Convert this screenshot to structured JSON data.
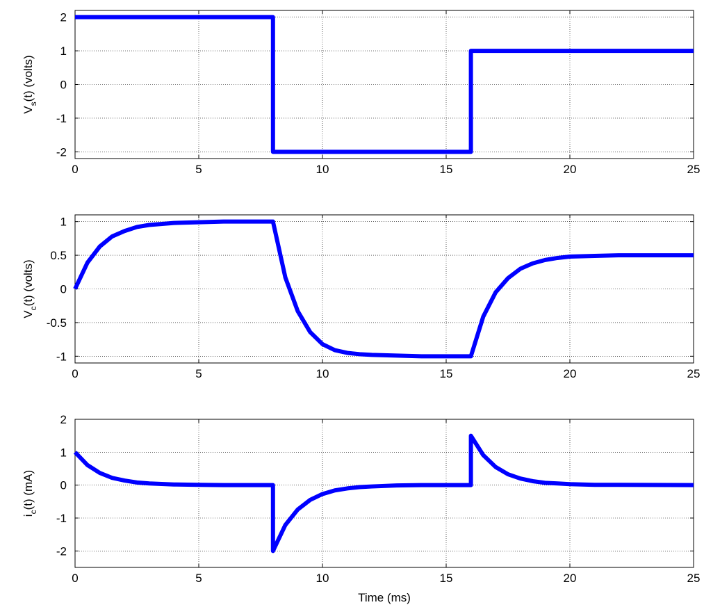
{
  "colors": {
    "series": "#0000ff",
    "axes": "#000000",
    "background": "#ffffff"
  },
  "chart_data": [
    {
      "type": "line",
      "ylabel": {
        "main": "V",
        "sub": "s",
        "rest": "(t) (volts)"
      },
      "xlabel": "",
      "xlim": [
        0,
        25
      ],
      "ylim": [
        -2.2,
        2.2
      ],
      "xticks": [
        0,
        5,
        10,
        15,
        20,
        25
      ],
      "yticks": [
        -2,
        -1,
        0,
        1,
        2
      ],
      "xtick_labels": [
        "0",
        "5",
        "10",
        "15",
        "20",
        "25"
      ],
      "ytick_labels": [
        "-2",
        "-1",
        "0",
        "1",
        "2"
      ],
      "grid": true,
      "series": [
        {
          "color": "#0000ff",
          "x": [
            0,
            8,
            8,
            16,
            16,
            25
          ],
          "y": [
            2,
            2,
            -2,
            -2,
            1,
            1
          ]
        }
      ]
    },
    {
      "type": "line",
      "ylabel": {
        "main": "V",
        "sub": "c",
        "rest": "(t) (volts)"
      },
      "xlabel": "",
      "xlim": [
        0,
        25
      ],
      "ylim": [
        -1.1,
        1.1
      ],
      "xticks": [
        0,
        5,
        10,
        15,
        20,
        25
      ],
      "yticks": [
        -1,
        -0.5,
        0,
        0.5,
        1
      ],
      "xtick_labels": [
        "0",
        "5",
        "10",
        "15",
        "20",
        "25"
      ],
      "ytick_labels": [
        "-1",
        "-0.5",
        "0",
        "0.5",
        "1"
      ],
      "grid": true,
      "series": [
        {
          "color": "#0000ff",
          "x": [
            0,
            0.5,
            1,
            1.5,
            2,
            2.5,
            3,
            4,
            5,
            6,
            7,
            8,
            8.5,
            9,
            9.5,
            10,
            10.5,
            11,
            11.5,
            12,
            13,
            14,
            15,
            16,
            16.5,
            17,
            17.5,
            18,
            18.5,
            19,
            19.5,
            20,
            21,
            22,
            25
          ],
          "y": [
            0,
            0.39,
            0.63,
            0.78,
            0.86,
            0.92,
            0.95,
            0.98,
            0.99,
            1.0,
            1.0,
            1.0,
            0.17,
            -0.33,
            -0.64,
            -0.82,
            -0.91,
            -0.95,
            -0.97,
            -0.98,
            -0.99,
            -1.0,
            -1.0,
            -1.0,
            -0.41,
            -0.05,
            0.16,
            0.3,
            0.38,
            0.43,
            0.46,
            0.48,
            0.49,
            0.5,
            0.5
          ]
        }
      ]
    },
    {
      "type": "line",
      "ylabel": {
        "main": "i",
        "sub": "c",
        "rest": "(t) (mA)"
      },
      "xlabel": "Time (ms)",
      "xlim": [
        0,
        25
      ],
      "ylim": [
        -2.5,
        2
      ],
      "xticks": [
        0,
        5,
        10,
        15,
        20,
        25
      ],
      "yticks": [
        -2,
        -1,
        0,
        1,
        2
      ],
      "xtick_labels": [
        "0",
        "5",
        "10",
        "15",
        "20",
        "25"
      ],
      "ytick_labels": [
        "-2",
        "-1",
        "0",
        "1",
        "2"
      ],
      "grid": true,
      "series": [
        {
          "color": "#0000ff",
          "x": [
            0,
            0.5,
            1,
            1.5,
            2,
            2.5,
            3,
            4,
            5,
            6,
            7,
            8,
            8,
            8.5,
            9,
            9.5,
            10,
            10.5,
            11,
            11.5,
            12,
            13,
            14,
            15,
            16,
            16,
            16.5,
            17,
            17.5,
            18,
            18.5,
            19,
            19.5,
            20,
            21,
            25
          ],
          "y": [
            1,
            0.61,
            0.37,
            0.22,
            0.14,
            0.08,
            0.05,
            0.02,
            0.01,
            0,
            0,
            0,
            -2,
            -1.21,
            -0.74,
            -0.45,
            -0.27,
            -0.16,
            -0.1,
            -0.06,
            -0.04,
            -0.01,
            0,
            0,
            0,
            1.5,
            0.91,
            0.55,
            0.33,
            0.2,
            0.12,
            0.07,
            0.05,
            0.03,
            0.01,
            0
          ]
        }
      ]
    }
  ]
}
